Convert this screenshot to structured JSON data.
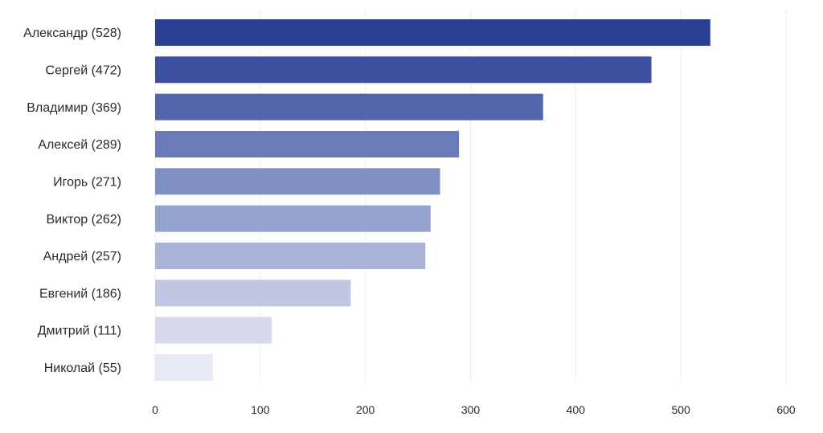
{
  "chart_data": {
    "type": "bar",
    "orientation": "horizontal",
    "categories": [
      "Александр (528)",
      "Сергей (472)",
      "Владимир (369)",
      "Алексей (289)",
      "Игорь (271)",
      "Виктор (262)",
      "Андрей (257)",
      "Евгений (186)",
      "Дмитрий (111)",
      "Николай (55)"
    ],
    "values": [
      528,
      472,
      369,
      289,
      271,
      262,
      257,
      186,
      111,
      55
    ],
    "xlim": [
      0,
      600
    ],
    "xticks": [
      "0",
      "100",
      "200",
      "300",
      "400",
      "500",
      "600"
    ],
    "tick_values": [
      0,
      100,
      200,
      300,
      400,
      500,
      600
    ],
    "grid": "vertical",
    "legend": "none",
    "colors": [
      "#2b3f94",
      "#3d51a0",
      "#5466ab",
      "#6b7bb7",
      "#8190c3",
      "#95a2cd",
      "#aab4d8",
      "#c1c7e3",
      "#d6daec",
      "#e7eaf4"
    ]
  }
}
